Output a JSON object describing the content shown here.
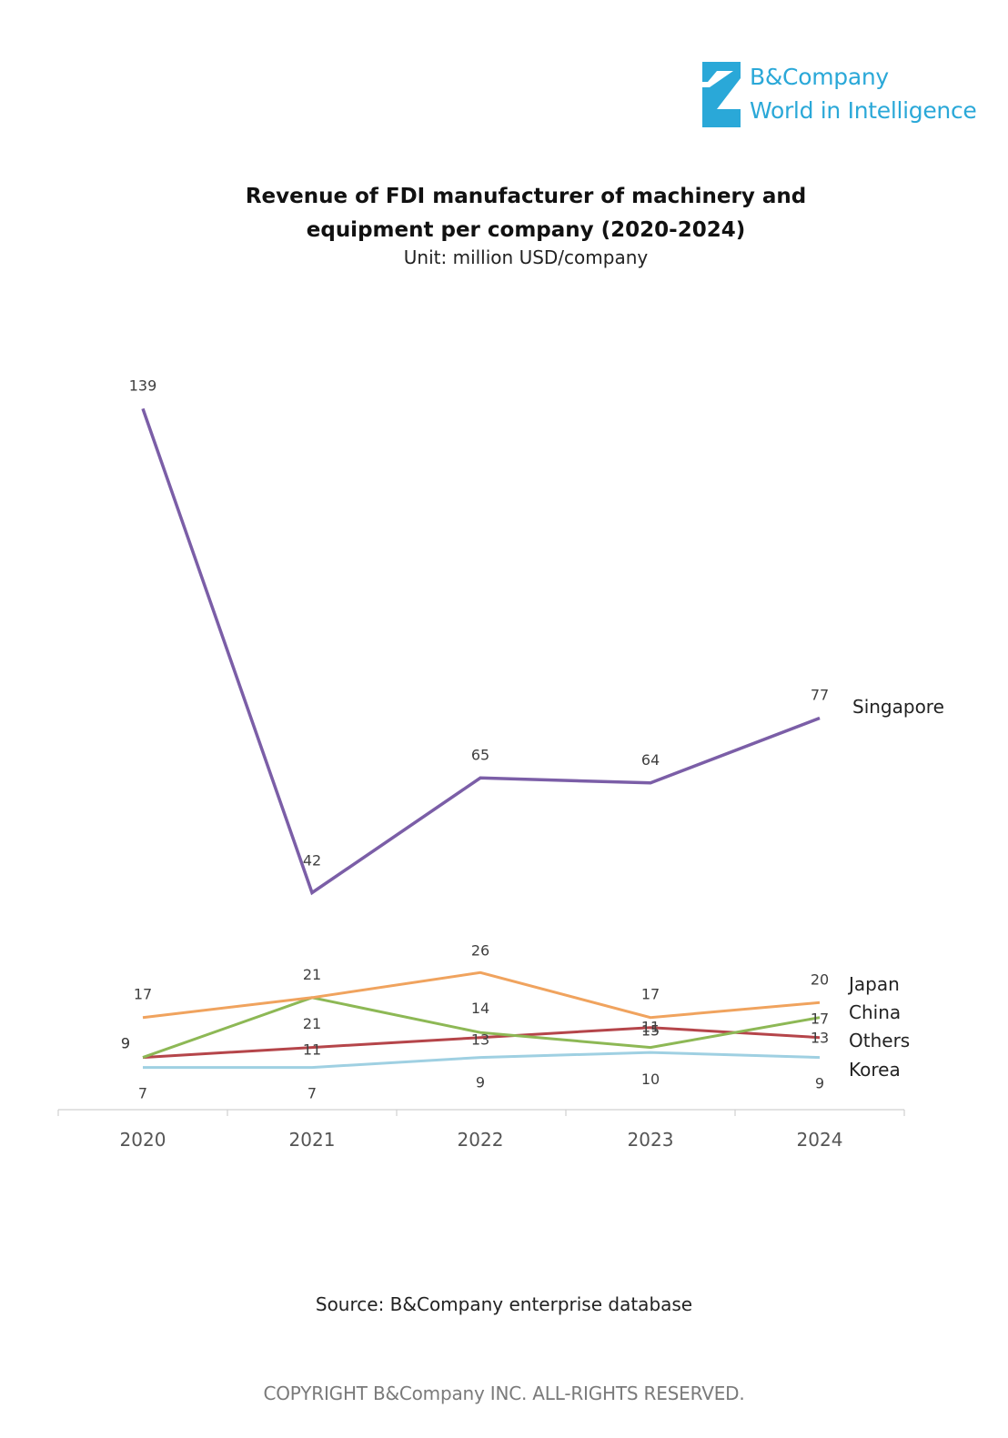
{
  "logo": {
    "name": "B&Company",
    "tagline": "World in Intelligence",
    "color": "#2aa8d8"
  },
  "chart_data": {
    "type": "line",
    "title": "Revenue of FDI manufacturer of machinery and equipment per company (2020-2024)",
    "title_lines": [
      "Revenue of FDI manufacturer of machinery and",
      "equipment per company (2020-2024)"
    ],
    "subtitle": "Unit: million USD/company",
    "categories": [
      "2020",
      "2021",
      "2022",
      "2023",
      "2024"
    ],
    "series": [
      {
        "name": "Singapore",
        "values": [
          139,
          42,
          65,
          64,
          77
        ],
        "color": "#7b5ea7"
      },
      {
        "name": "Japan",
        "values": [
          17,
          21,
          26,
          17,
          20
        ],
        "color": "#f0a35e"
      },
      {
        "name": "China",
        "values": [
          9,
          21,
          14,
          11,
          17
        ],
        "color": "#8db855"
      },
      {
        "name": "Others",
        "values": [
          9,
          11,
          13,
          15,
          13
        ],
        "color": "#b5454a"
      },
      {
        "name": "Korea",
        "values": [
          7,
          7,
          9,
          10,
          9
        ],
        "color": "#9fd0e2"
      }
    ],
    "legend": "right-end-labels",
    "grid": false,
    "ylim": [
      0,
      139
    ]
  },
  "source": "Source: B&Company enterprise database",
  "copyright": "COPYRIGHT B&Company INC. ALL-RIGHTS RESERVED."
}
